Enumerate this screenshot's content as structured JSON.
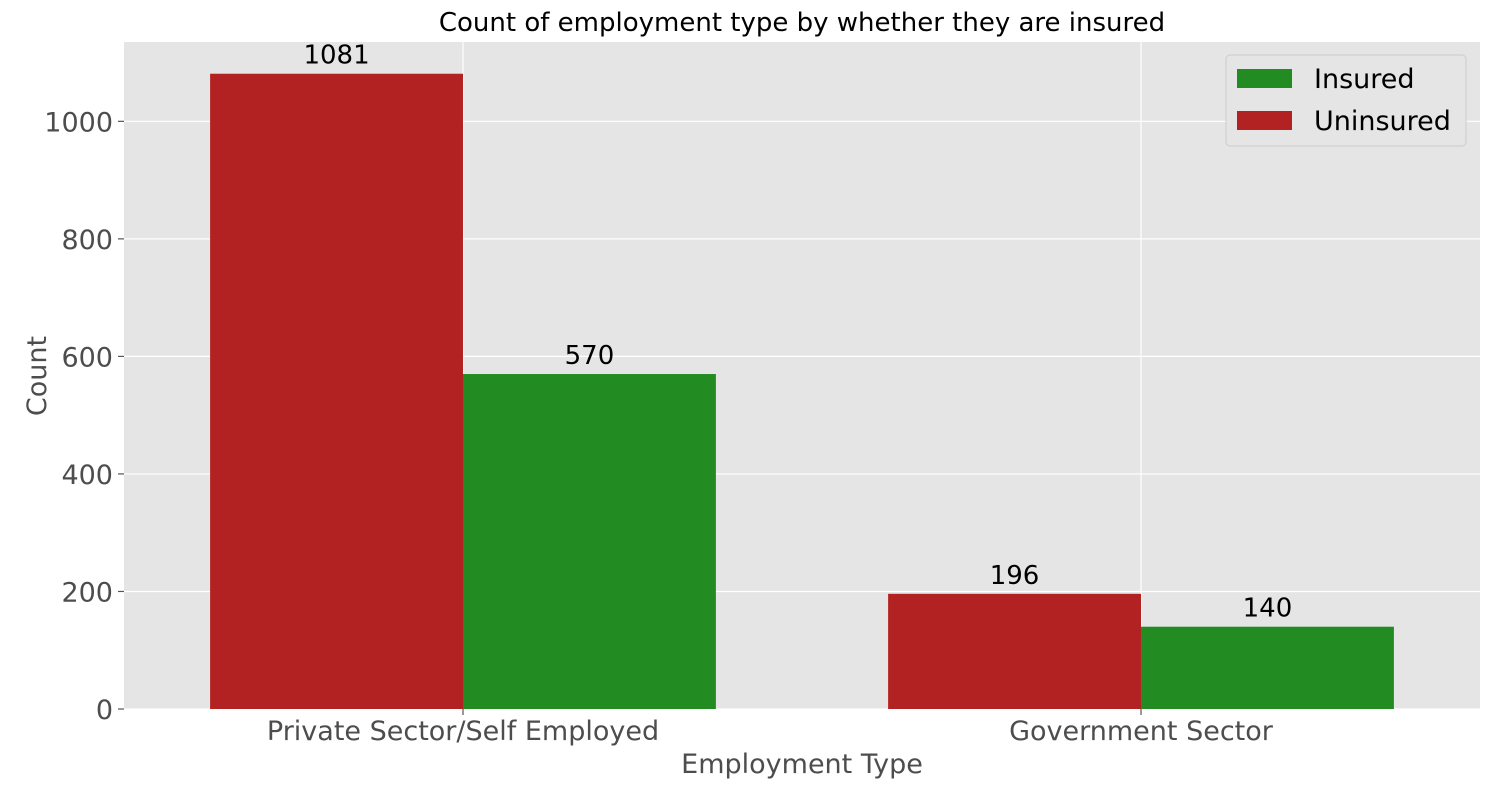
{
  "chart_data": {
    "type": "bar",
    "title": "Count of employment type by whether they are insured",
    "xlabel": "Employment Type",
    "ylabel": "Count",
    "categories": [
      "Private Sector/Self Employed",
      "Government Sector"
    ],
    "series": [
      {
        "name": "Uninsured",
        "values": [
          1081,
          196
        ],
        "color": "#b22222"
      },
      {
        "name": "Insured",
        "values": [
          570,
          140
        ],
        "color": "#228b22"
      }
    ],
    "legend_order": [
      "Insured",
      "Uninsured"
    ],
    "legend_position": "top-right",
    "ylim": [
      0,
      1135
    ],
    "yticks": [
      0,
      200,
      400,
      600,
      800,
      1000
    ],
    "grid": true,
    "background": "#e5e5e5"
  }
}
